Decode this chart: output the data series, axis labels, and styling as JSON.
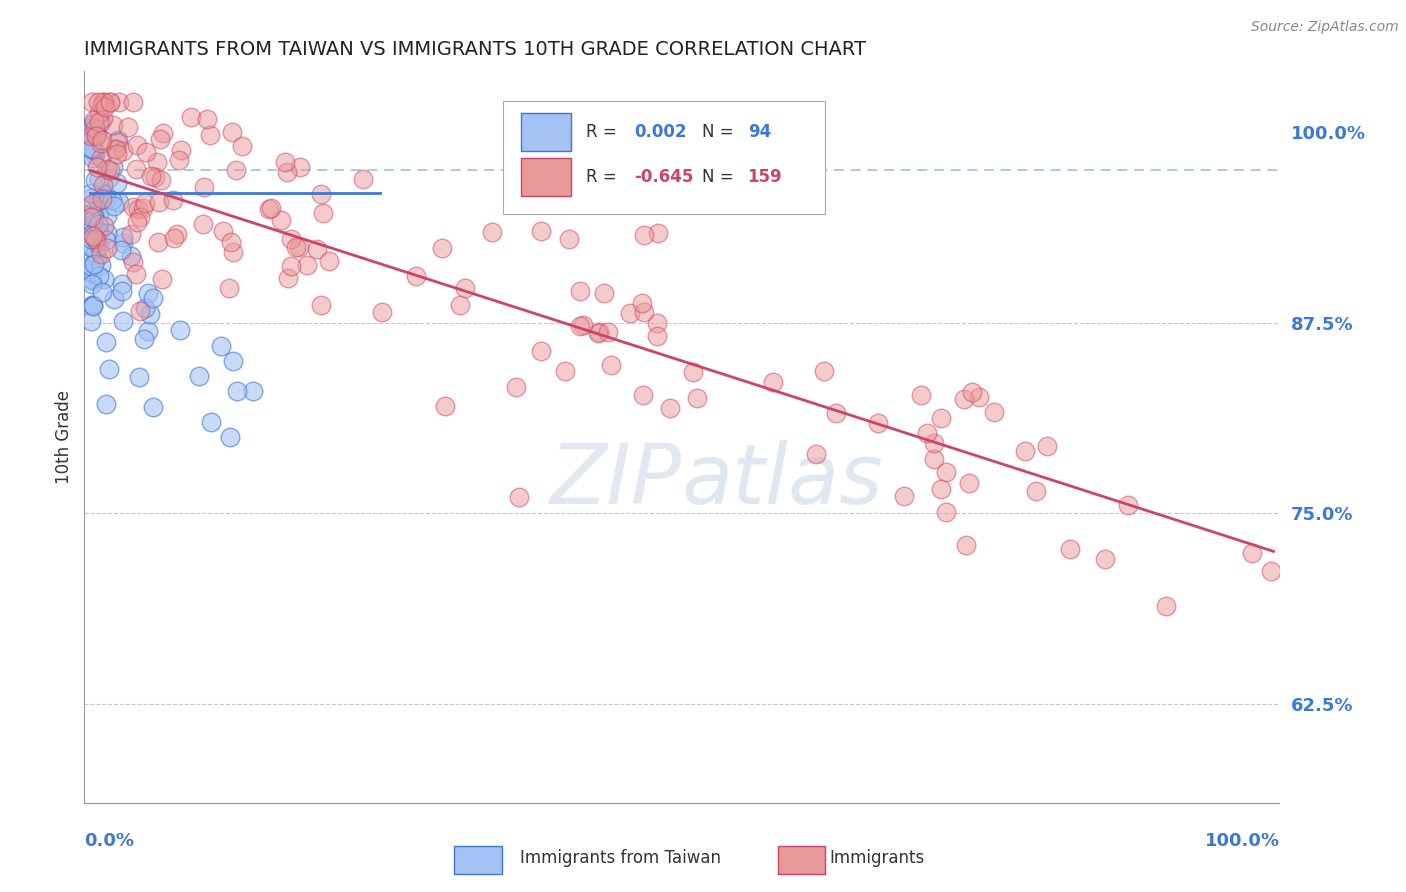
{
  "title": "IMMIGRANTS FROM TAIWAN VS IMMIGRANTS 10TH GRADE CORRELATION CHART",
  "source_text": "Source: ZipAtlas.com",
  "ylabel": "10th Grade",
  "x_label_bottom_left": "0.0%",
  "x_label_bottom_right": "100.0%",
  "y_tick_labels": [
    "62.5%",
    "75.0%",
    "87.5%",
    "100.0%"
  ],
  "y_tick_values": [
    0.625,
    0.75,
    0.875,
    1.0
  ],
  "legend_blue_r": "0.002",
  "legend_blue_n": "94",
  "legend_pink_r": "-0.645",
  "legend_pink_n": "159",
  "legend_label_blue": "Immigrants from Taiwan",
  "legend_label_pink": "Immigrants",
  "blue_color": "#a4c2f4",
  "pink_color": "#ea9999",
  "blue_edge_color": "#3d78d8",
  "pink_edge_color": "#cc4466",
  "blue_line_color": "#3d78d8",
  "pink_line_color": "#cc4466",
  "dashed_line_color": "#6fa8dc",
  "grid_color": "#bbbbbb",
  "title_color": "#222222",
  "axis_label_color": "#333333",
  "tick_label_color": "#3d78d8",
  "background_color": "#ffffff",
  "ylim_min": 0.56,
  "ylim_max": 1.04,
  "xlim_min": -0.005,
  "xlim_max": 1.005,
  "blue_trendline_x": [
    0.0,
    0.245
  ],
  "blue_trendline_y": [
    0.96,
    0.96
  ],
  "pink_trendline_x": [
    0.0,
    1.0
  ],
  "pink_trendline_y": [
    0.975,
    0.725
  ],
  "dashed_hline_y": 0.975,
  "watermark_text": "ZIPatlas",
  "watermark_color": "#c8d8f0",
  "watermark_size": 60
}
